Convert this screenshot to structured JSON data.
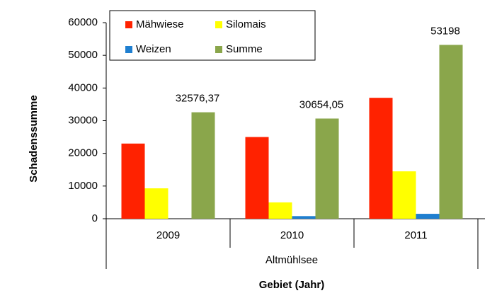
{
  "chart_data": {
    "type": "bar",
    "ylabel": "Schadenssumme",
    "xlabel": "Gebiet (Jahr)",
    "group_label": "Altmühlsee",
    "categories": [
      "2009",
      "2010",
      "2011"
    ],
    "series": [
      {
        "name": "Mähwiese",
        "color": "#ff2200",
        "values": [
          23000,
          25000,
          37000
        ]
      },
      {
        "name": "Silomais",
        "color": "#ffff00",
        "values": [
          9300,
          5000,
          14500
        ]
      },
      {
        "name": "Weizen",
        "color": "#1f7fd0",
        "values": [
          0,
          800,
          1500
        ]
      },
      {
        "name": "Summe",
        "color": "#8aa64b",
        "values": [
          32576.37,
          30654.05,
          53198
        ],
        "value_labels": [
          "32576,37",
          "30654,05",
          "53198"
        ]
      }
    ],
    "ylim": [
      0,
      60000
    ],
    "yticks": [
      0,
      10000,
      20000,
      30000,
      40000,
      50000,
      60000
    ],
    "grid": false,
    "legend": "top-left"
  }
}
